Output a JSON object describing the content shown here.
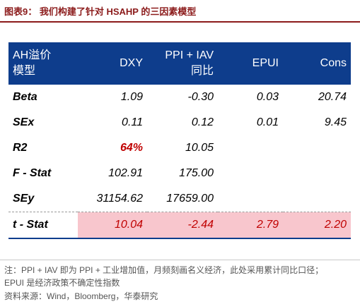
{
  "figure": {
    "title": "图表9：  我们构建了针对 HSAHP 的三因素模型"
  },
  "table": {
    "headers": {
      "col0_line1": "AH溢价",
      "col0_line2": "模型",
      "col1": "DXY",
      "col2_line1": "PPI + IAV",
      "col2_line2": "同比",
      "col3": "EPUI",
      "col4": "Cons"
    },
    "rows": [
      {
        "label": "Beta",
        "dxy": "1.09",
        "ppi": "-0.30",
        "epui": "0.03",
        "cons": "20.74"
      },
      {
        "label": "SEx",
        "dxy": "0.11",
        "ppi": "0.12",
        "epui": "0.01",
        "cons": "9.45"
      },
      {
        "label": "R2",
        "dxy": "64%",
        "ppi": "10.05",
        "epui": "",
        "cons": ""
      },
      {
        "label": "F - Stat",
        "dxy": "102.91",
        "ppi": "175.00",
        "epui": "",
        "cons": ""
      },
      {
        "label": "SEy",
        "dxy": "31154.62",
        "ppi": "17659.00",
        "epui": "",
        "cons": ""
      },
      {
        "label": "t - Stat",
        "dxy": "10.04",
        "ppi": "-2.44",
        "epui": "2.79",
        "cons": "2.20"
      }
    ]
  },
  "notes": {
    "line1": "注：PPI + IAV 即为 PPI + 工业增加值，月频刻画名义经济，此处采用累计同比口径；",
    "line2": "EPUI 是经济政策不确定性指数",
    "source": "资料来源：Wind，Bloomberg，华泰研究"
  },
  "colors": {
    "title": "#8b1a1a",
    "header_bg": "#0e3d8c",
    "highlight_bg": "#f8c6cd",
    "highlight_text": "#c00000"
  }
}
